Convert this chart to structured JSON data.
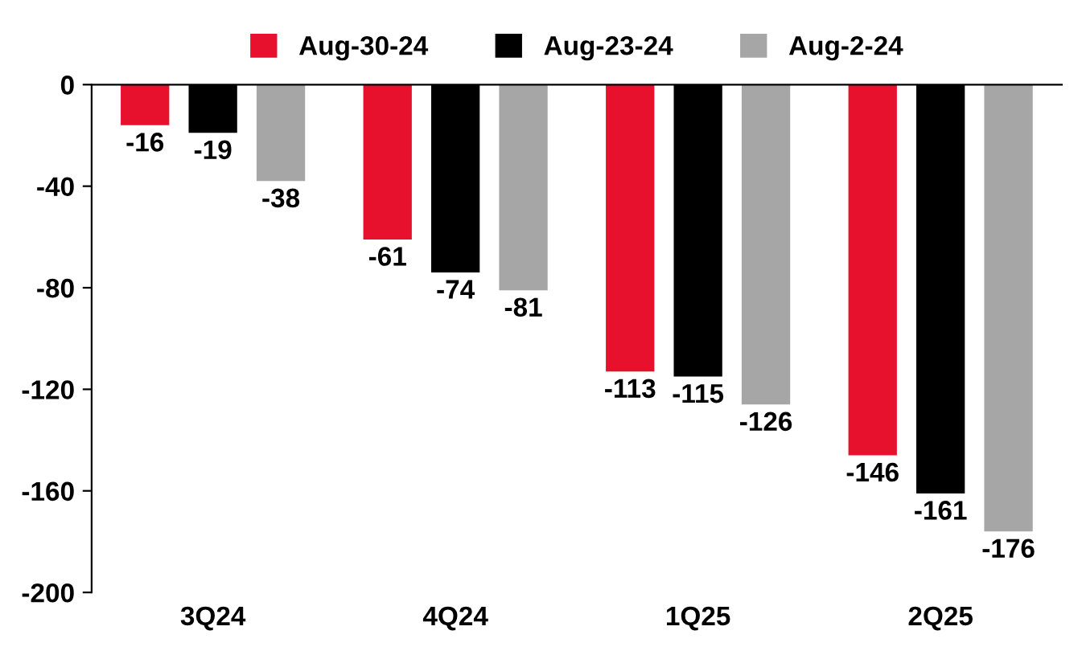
{
  "chart_data": {
    "type": "bar",
    "categories": [
      "3Q24",
      "4Q24",
      "1Q25",
      "2Q25"
    ],
    "series": [
      {
        "name": "Aug-30-24",
        "color": "#e8112d",
        "values": [
          -16,
          -61,
          -113,
          -146
        ]
      },
      {
        "name": "Aug-23-24",
        "color": "#000000",
        "values": [
          -19,
          -74,
          -115,
          -161
        ]
      },
      {
        "name": "Aug-2-24",
        "color": "#a6a6a6",
        "values": [
          -38,
          -81,
          -126,
          -176
        ]
      }
    ],
    "ylim": [
      -200,
      0
    ],
    "yticks": [
      -200,
      -160,
      -120,
      -80,
      -40,
      0
    ],
    "grid": false,
    "legend": "top",
    "data_labels": true
  }
}
